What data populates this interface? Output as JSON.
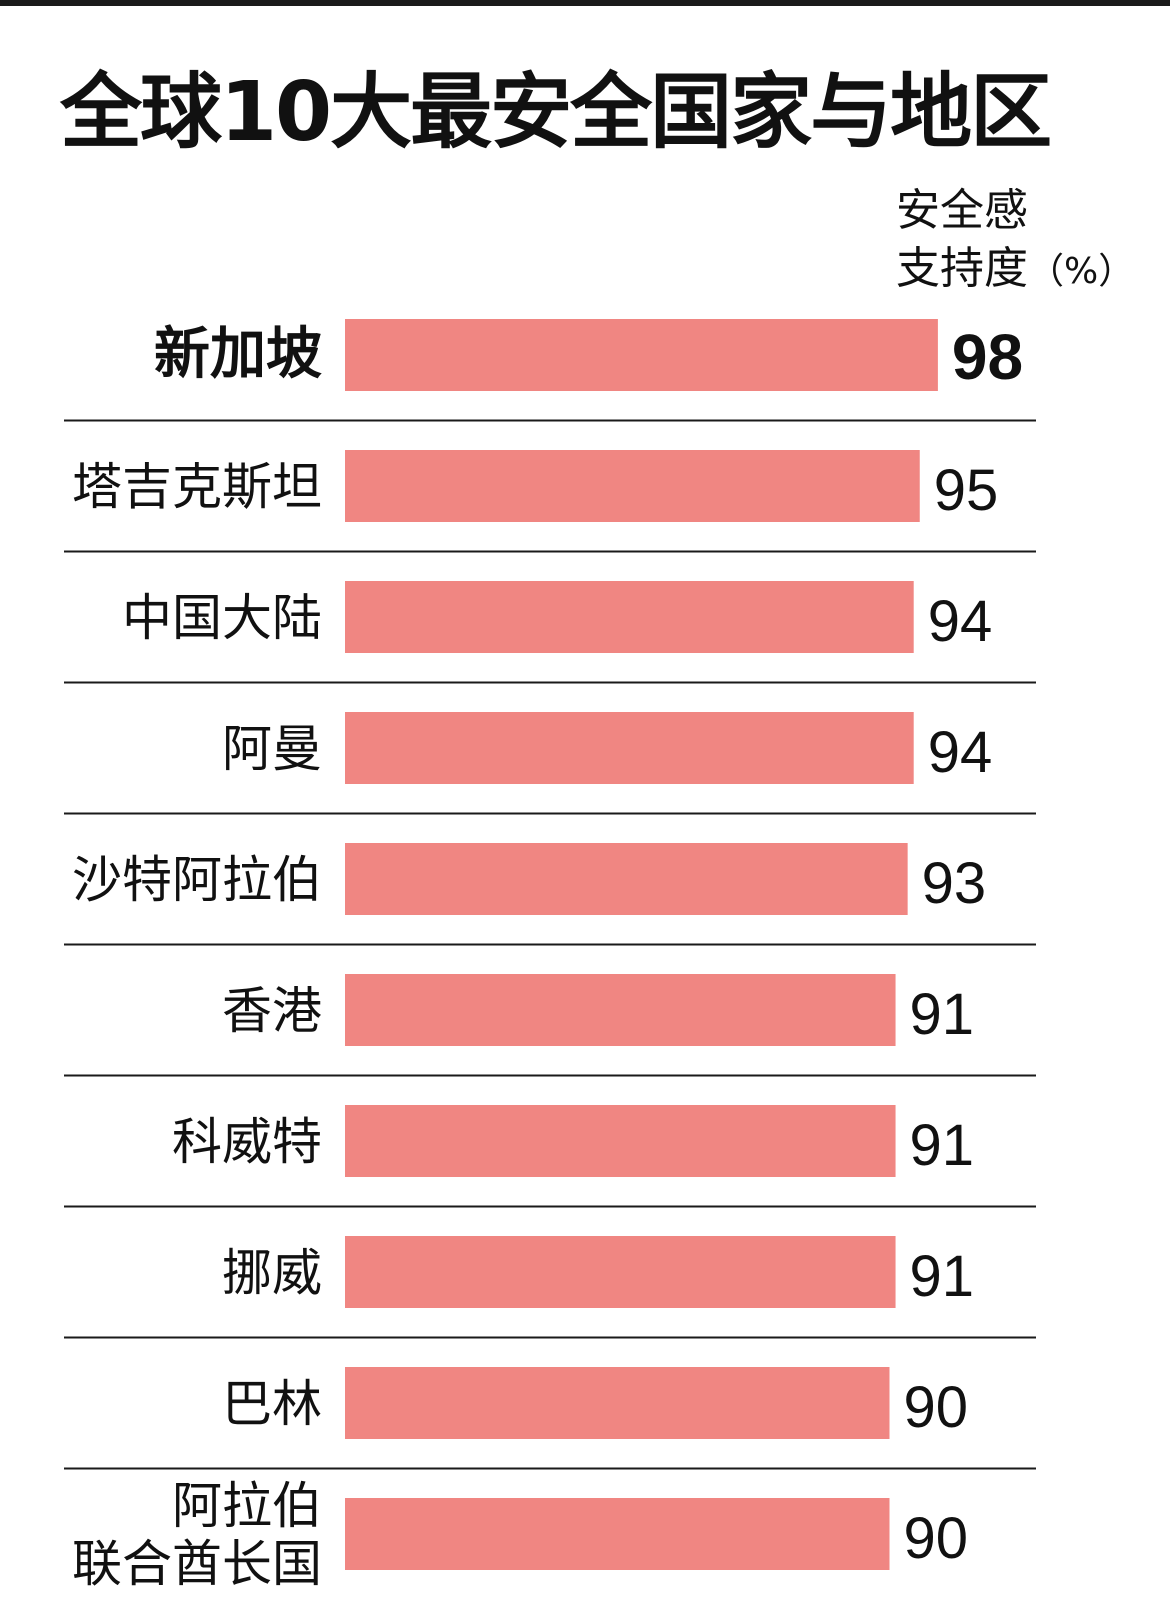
{
  "title": "全球10大最安全国家与地区",
  "unit_label": {
    "line1": "安全感",
    "line2": "支持度",
    "pct": "（%）"
  },
  "colors": {
    "bar": "#f08682",
    "text": "#111111",
    "rule": "#1a1a1a"
  },
  "chart_data": {
    "type": "bar",
    "orientation": "horizontal",
    "title": "全球10大最安全国家与地区",
    "ylabel": "安全感支持度（%）",
    "categories": [
      [
        "新加坡"
      ],
      [
        "塔吉克斯坦"
      ],
      [
        "中国大陆"
      ],
      [
        "阿曼"
      ],
      [
        "沙特阿拉伯"
      ],
      [
        "香港"
      ],
      [
        "科威特"
      ],
      [
        "挪威"
      ],
      [
        "巴林"
      ],
      [
        "阿拉伯",
        "联合酋长国"
      ]
    ],
    "values": [
      98,
      95,
      94,
      94,
      93,
      91,
      91,
      91,
      90,
      90
    ],
    "highlight_index": 0,
    "grid": false,
    "legend": "none"
  }
}
